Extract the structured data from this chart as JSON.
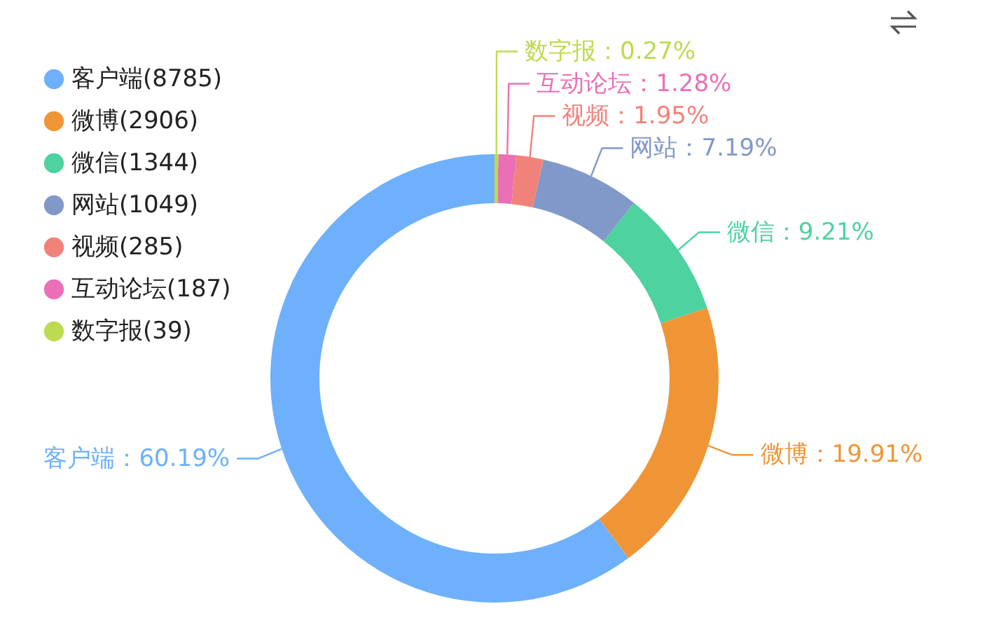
{
  "chart_data": {
    "type": "donut",
    "categories": [
      "客户端(8785)",
      "微博(2906)",
      "微信(1344)",
      "网站(1049)",
      "视频(285)",
      "互动论坛(187)",
      "数字报(39)"
    ],
    "values": [
      60.19,
      19.91,
      9.21,
      7.19,
      1.95,
      1.28,
      0.27
    ],
    "value_labels": [
      "客户端：60.19%",
      "微博：19.91%",
      "微信：9.21%",
      "网站：7.19%",
      "视频：1.95%",
      "互动论坛：1.28%",
      "数字报：0.27%"
    ],
    "colors": [
      "#6eb0fb",
      "#f09536",
      "#4dd2a0",
      "#8199c9",
      "#f1827a",
      "#ea6fb6",
      "#bcdb4f"
    ],
    "legend": "top left"
  }
}
